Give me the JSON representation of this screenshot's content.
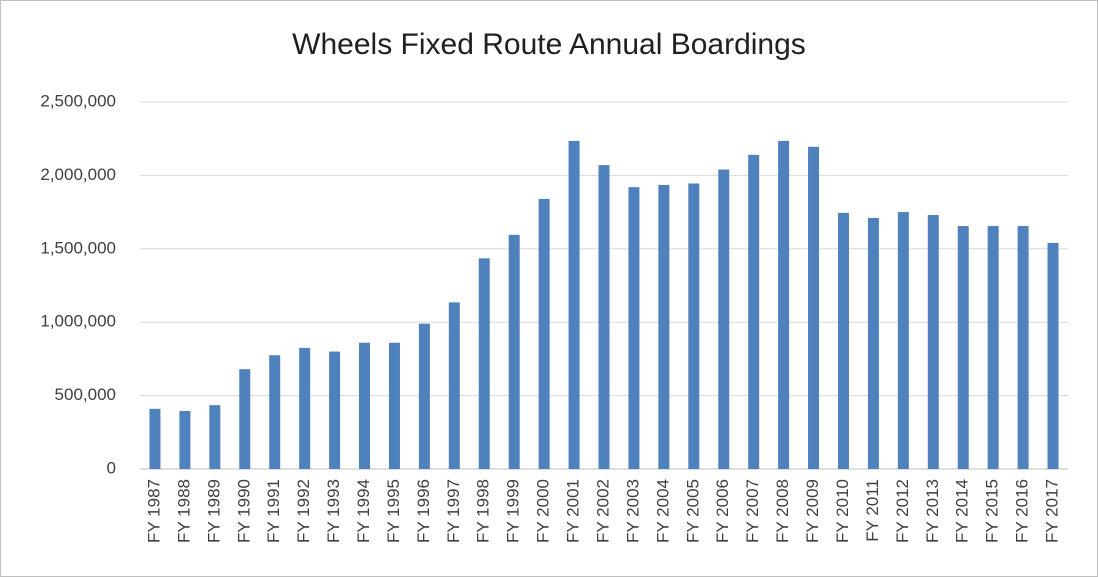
{
  "chart_data": {
    "type": "bar",
    "title": "Wheels Fixed Route Annual Boardings",
    "categories": [
      "FY 1987",
      "FY 1988",
      "FY 1989",
      "FY 1990",
      "FY 1991",
      "FY 1992",
      "FY 1993",
      "FY 1994",
      "FY 1995",
      "FY 1996",
      "FY 1997",
      "FY 1998",
      "FY 1999",
      "FY 2000",
      "FY 2001",
      "FY 2002",
      "FY 2003",
      "FY 2004",
      "FY 2005",
      "FY 2006",
      "FY 2007",
      "FY 2008",
      "FY 2009",
      "FY 2010",
      "FY 2011",
      "FY 2012",
      "FY 2013",
      "FY 2014",
      "FY 2015",
      "FY 2016",
      "FY 2017"
    ],
    "values": [
      410000,
      395000,
      435000,
      680000,
      775000,
      825000,
      800000,
      860000,
      860000,
      990000,
      1135000,
      1435000,
      1595000,
      1840000,
      2235000,
      2070000,
      1920000,
      1935000,
      1945000,
      2040000,
      2140000,
      2235000,
      2195000,
      1745000,
      1710000,
      1750000,
      1730000,
      1655000,
      1655000,
      1655000,
      1540000
    ],
    "color": "#4f81bd",
    "ylim": [
      0,
      2500000
    ],
    "yticks": [
      0,
      {
        "value": 500000,
        "label": "500,000"
      },
      {
        "value": 1000000,
        "label": "1,000,000"
      },
      {
        "value": 1500000,
        "label": "1,500,000"
      },
      {
        "value": 2000000,
        "label": "2,000,000"
      },
      {
        "value": 2500000,
        "label": "2,500,000"
      }
    ],
    "grid": true
  }
}
